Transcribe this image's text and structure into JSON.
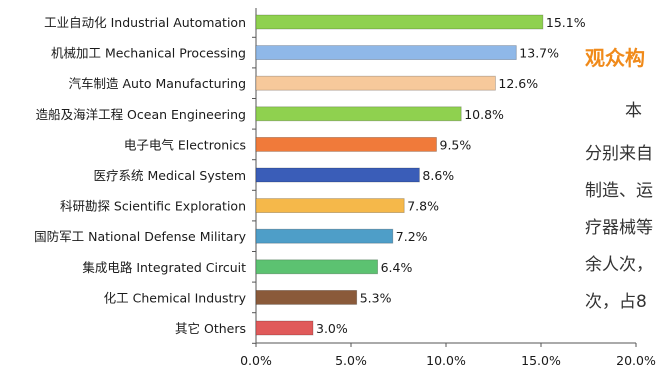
{
  "chart_data": {
    "type": "bar",
    "orientation": "horizontal",
    "categories": [
      "工业自动化 Industrial Automation",
      "机械加工 Mechanical Processing",
      "汽车制造 Auto Manufacturing",
      "造船及海洋工程 Ocean Engineering",
      "电子电气 Electronics",
      "医疗系统 Medical System",
      "科研勘探 Scientific Exploration",
      "国防军工 National Defense Military",
      "集成电路 Integrated Circuit",
      "化工 Chemical Industry",
      "其它 Others"
    ],
    "values": [
      15.1,
      13.7,
      12.6,
      10.8,
      9.5,
      8.6,
      7.8,
      7.2,
      6.4,
      5.3,
      3.0
    ],
    "value_labels": [
      "15.1%",
      "13.7%",
      "12.6%",
      "10.8%",
      "9.5%",
      "8.6%",
      "7.8%",
      "7.2%",
      "6.4%",
      "5.3%",
      "3.0%"
    ],
    "colors": [
      "#8fd14f",
      "#8fb8e8",
      "#f7c99b",
      "#8fd14f",
      "#f07a3a",
      "#3a5db8",
      "#f5b84a",
      "#4e9ec8",
      "#5cc271",
      "#8a5a3a",
      "#e05a5a"
    ],
    "xlim": [
      0,
      20
    ],
    "xticks": [
      "0.0%",
      "5.0%",
      "10.0%",
      "15.0%",
      "20.0%"
    ],
    "grid": false
  },
  "side_text": {
    "heading": "观众构",
    "lines": [
      "本",
      "分别来自",
      "制造、运",
      "疗器械等",
      "余人次，",
      "次，占8"
    ]
  }
}
